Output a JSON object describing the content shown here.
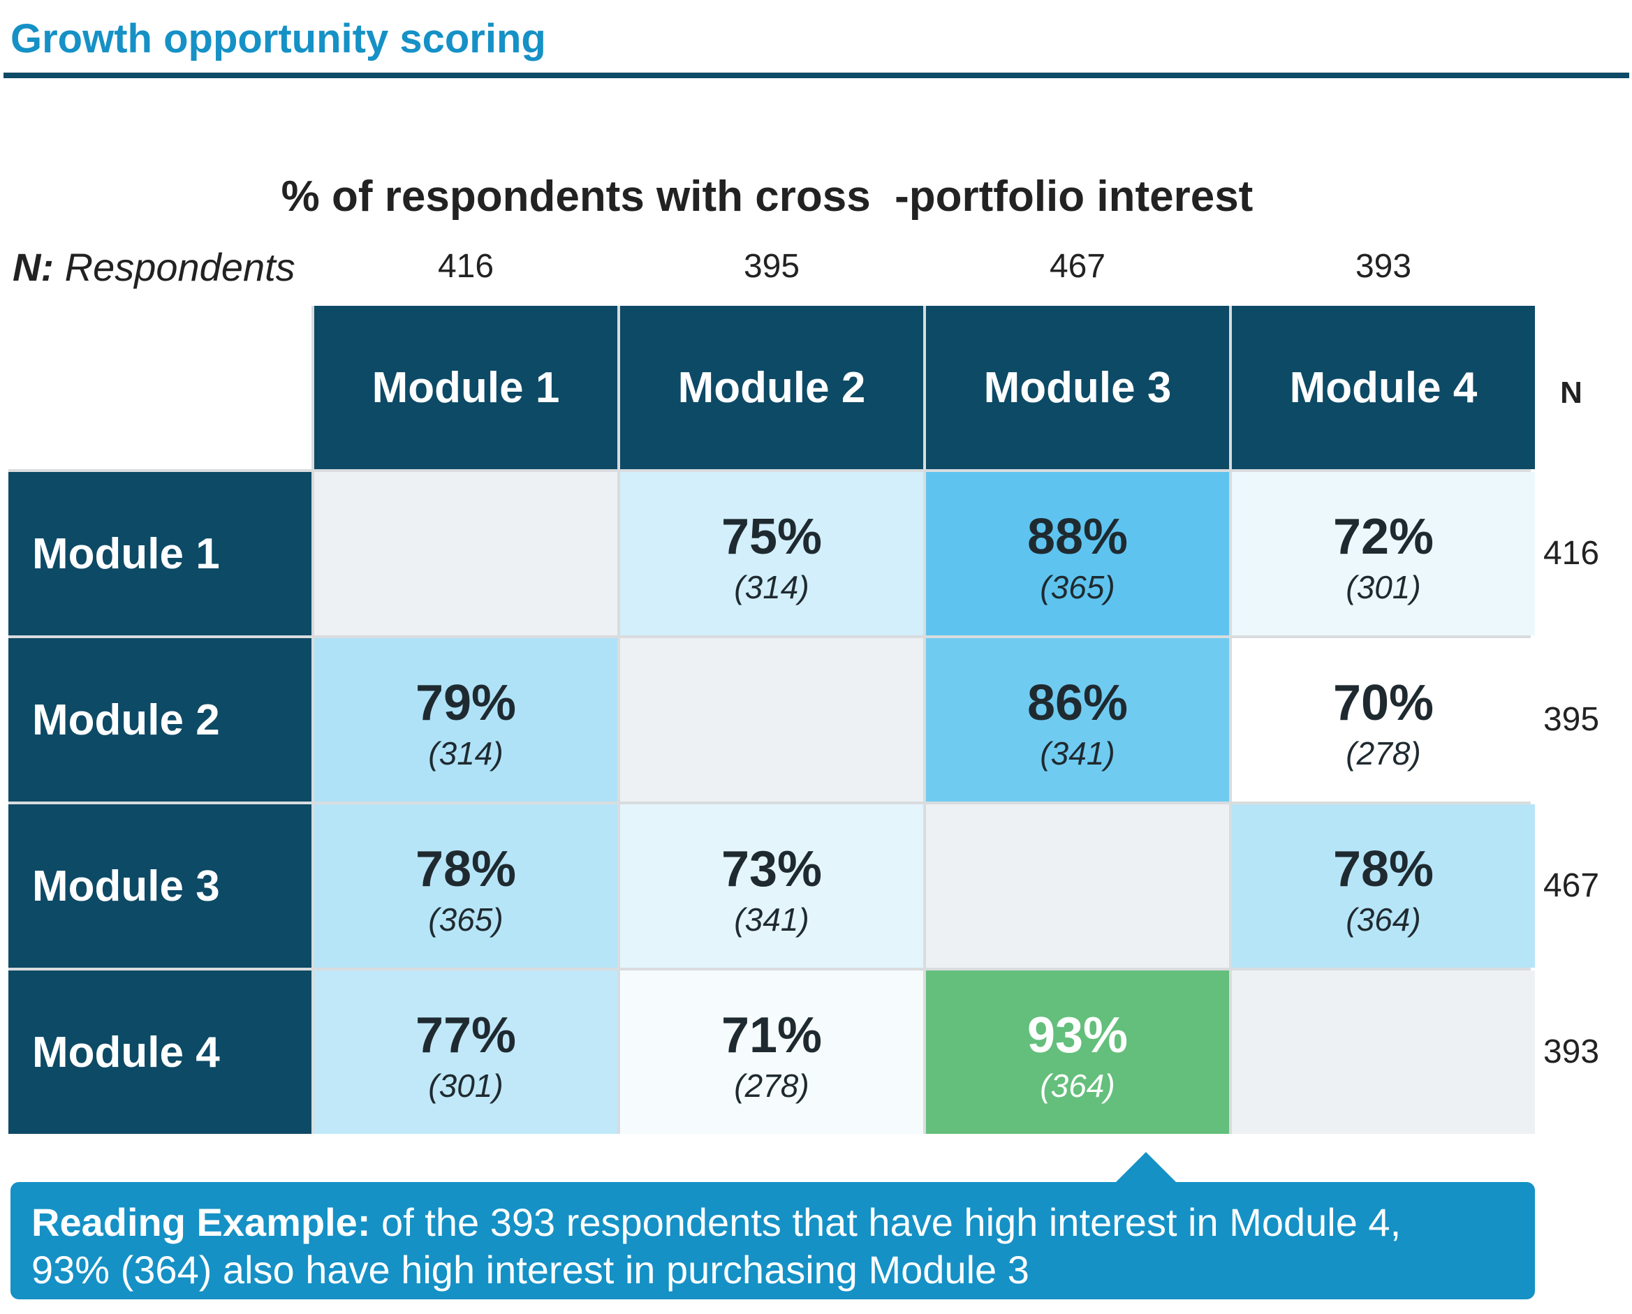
{
  "page_title": "Growth opportunity scoring",
  "chart_data": {
    "type": "heatmap",
    "title": "% of respondents with cross  -portfolio interest",
    "n_label_bold": "N:",
    "n_label_rest": " Respondents",
    "columns": [
      "Module 1",
      "Module 2",
      "Module 3",
      "Module 4"
    ],
    "column_n": [
      416,
      395,
      467,
      393
    ],
    "rows": [
      "Module 1",
      "Module 2",
      "Module 3",
      "Module 4"
    ],
    "row_n_header": "N",
    "row_n": [
      416,
      395,
      467,
      393
    ],
    "cells": [
      [
        null,
        {
          "pct": "75%",
          "count": "(314)"
        },
        {
          "pct": "88%",
          "count": "(365)"
        },
        {
          "pct": "72%",
          "count": "(301)"
        }
      ],
      [
        {
          "pct": "79%",
          "count": "(314)"
        },
        null,
        {
          "pct": "86%",
          "count": "(341)"
        },
        {
          "pct": "70%",
          "count": "(278)"
        }
      ],
      [
        {
          "pct": "78%",
          "count": "(365)"
        },
        {
          "pct": "73%",
          "count": "(341)"
        },
        null,
        {
          "pct": "78%",
          "count": "(364)"
        }
      ],
      [
        {
          "pct": "77%",
          "count": "(301)"
        },
        {
          "pct": "71%",
          "count": "(278)"
        },
        {
          "pct": "93%",
          "count": "(364)"
        },
        null
      ]
    ],
    "colors": {
      "header": "#0d4a66",
      "empty": "#edf1f3",
      "highlight": "#63bf7b",
      "scale_low": "#ffffff",
      "scale_high": "#5ec4ef"
    }
  },
  "callout": {
    "bold": "Reading Example:",
    "line1": " of the 393 respondents that have high interest in Module 4,",
    "line2": "93% (364) also have high interest in purchasing Module 3"
  }
}
